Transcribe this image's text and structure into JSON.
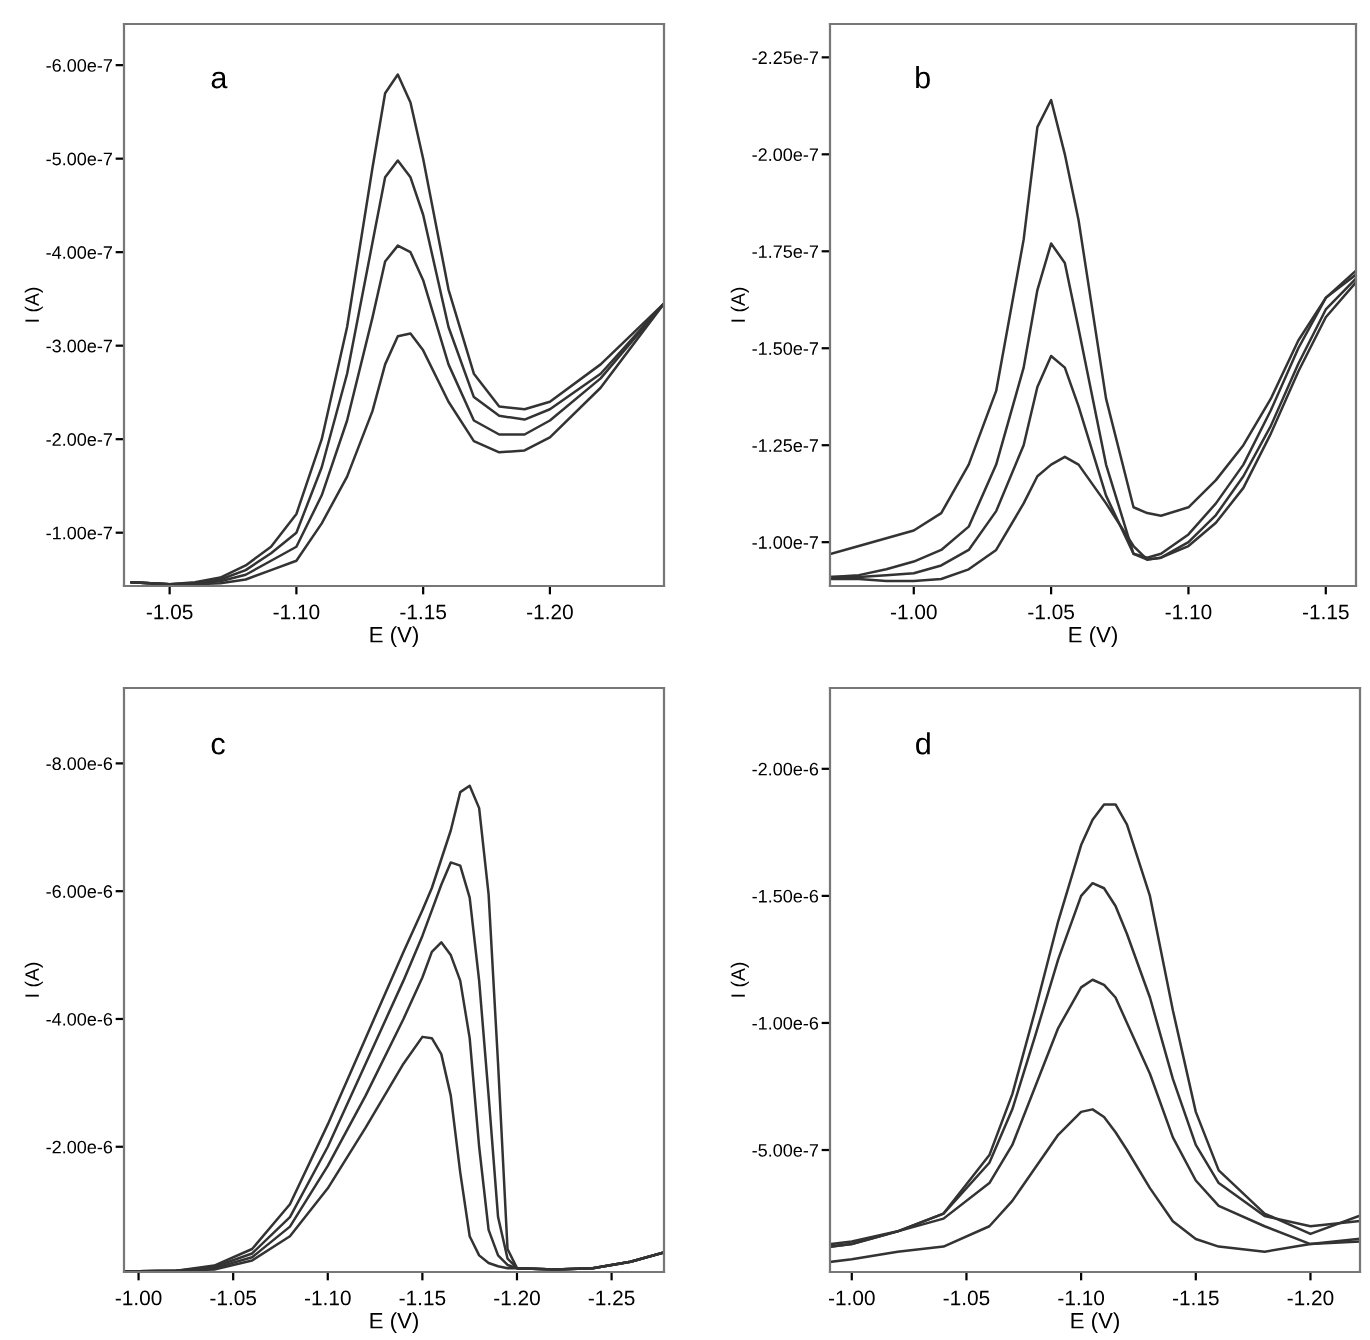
{
  "chart_data": [
    {
      "type": "line",
      "annotations": [
        "a"
      ],
      "xlabel": "E (V)",
      "ylabel": "I (A)",
      "x": [
        -1.035,
        -1.05,
        -1.06,
        -1.07,
        -1.08,
        -1.09,
        -1.1,
        -1.11,
        -1.12,
        -1.13,
        -1.135,
        -1.14,
        -1.145,
        -1.15,
        -1.16,
        -1.17,
        -1.18,
        -1.19,
        -1.2,
        -1.22,
        -1.245
      ],
      "series": [
        {
          "color": "#333333",
          "values": [
            -4.7e-08,
            -4.5e-08,
            -4.7e-08,
            -5.2e-08,
            -6.5e-08,
            -8.5e-08,
            -1.2e-07,
            -2e-07,
            -3.2e-07,
            -4.9e-07,
            -5.7e-07,
            -5.9e-07,
            -5.6e-07,
            -5e-07,
            -3.6e-07,
            -2.7e-07,
            -2.35e-07,
            -2.32e-07,
            -2.4e-07,
            -2.8e-07,
            -3.45e-07
          ]
        },
        {
          "color": "#333333",
          "values": [
            -4.7e-08,
            -4.5e-08,
            -4.6e-08,
            -5e-08,
            -6e-08,
            -7.8e-08,
            -1e-07,
            -1.7e-07,
            -2.7e-07,
            -4.1e-07,
            -4.8e-07,
            -4.98e-07,
            -4.8e-07,
            -4.4e-07,
            -3.2e-07,
            -2.45e-07,
            -2.25e-07,
            -2.21e-07,
            -2.32e-07,
            -2.7e-07,
            -3.45e-07
          ]
        },
        {
          "color": "#333333",
          "values": [
            -4.7e-08,
            -4.5e-08,
            -4.6e-08,
            -4.8e-08,
            -5.5e-08,
            -7e-08,
            -8.5e-08,
            -1.4e-07,
            -2.2e-07,
            -3.3e-07,
            -3.9e-07,
            -4.07e-07,
            -4e-07,
            -3.7e-07,
            -2.8e-07,
            -2.2e-07,
            -2.05e-07,
            -2.05e-07,
            -2.2e-07,
            -2.65e-07,
            -3.45e-07
          ]
        },
        {
          "color": "#333333",
          "values": [
            -4.7e-08,
            -4.5e-08,
            -4.5e-08,
            -4.6e-08,
            -5e-08,
            -6e-08,
            -7e-08,
            -1.1e-07,
            -1.6e-07,
            -2.3e-07,
            -2.8e-07,
            -3.1e-07,
            -3.13e-07,
            -2.95e-07,
            -2.4e-07,
            -1.98e-07,
            -1.86e-07,
            -1.88e-07,
            -2.02e-07,
            -2.55e-07,
            -3.45e-07
          ]
        }
      ],
      "xlim": [
        -1.032,
        -1.245
      ],
      "ylim": [
        -4.3e-08,
        -6.44e-07
      ],
      "xticks": [
        {
          "value": -1.05,
          "label": "-1.05"
        },
        {
          "value": -1.1,
          "label": "-1.10"
        },
        {
          "value": -1.15,
          "label": "-1.15"
        },
        {
          "value": -1.2,
          "label": "-1.20"
        }
      ],
      "yticks": [
        {
          "value": -1e-07,
          "label": "-1.00e-7"
        },
        {
          "value": -2e-07,
          "label": "-2.00e-7"
        },
        {
          "value": -3e-07,
          "label": "-3.00e-7"
        },
        {
          "value": -4e-07,
          "label": "-4.00e-7"
        },
        {
          "value": -5e-07,
          "label": "-5.00e-7"
        },
        {
          "value": -6e-07,
          "label": "-6.00e-7"
        }
      ],
      "grid": false,
      "legend": false
    },
    {
      "type": "line",
      "annotations": [
        "b"
      ],
      "xlabel": "E (V)",
      "ylabel": "I (A)",
      "x": [
        -0.97,
        -0.98,
        -0.99,
        -1.0,
        -1.01,
        -1.02,
        -1.03,
        -1.04,
        -1.045,
        -1.05,
        -1.055,
        -1.06,
        -1.07,
        -1.08,
        -1.085,
        -1.09,
        -1.1,
        -1.11,
        -1.12,
        -1.13,
        -1.14,
        -1.15,
        -1.161
      ],
      "series": [
        {
          "color": "#333333",
          "values": [
            -9.7e-08,
            -9.9e-08,
            -1.01e-07,
            -1.03e-07,
            -1.075e-07,
            -1.2e-07,
            -1.39e-07,
            -1.78e-07,
            -2.07e-07,
            -2.14e-07,
            -2e-07,
            -1.83e-07,
            -1.37e-07,
            -1.09e-07,
            -1.075e-07,
            -1.068e-07,
            -1.09e-07,
            -1.16e-07,
            -1.25e-07,
            -1.37e-07,
            -1.52e-07,
            -1.63e-07,
            -1.7e-07
          ]
        },
        {
          "color": "#333333",
          "values": [
            -9.1e-08,
            -9.15e-08,
            -9.3e-08,
            -9.5e-08,
            -9.8e-08,
            -1.04e-07,
            -1.2e-07,
            -1.45e-07,
            -1.65e-07,
            -1.77e-07,
            -1.72e-07,
            -1.55e-07,
            -1.2e-07,
            -9.7e-08,
            -9.6e-08,
            -9.7e-08,
            -1.02e-07,
            -1.1e-07,
            -1.2e-07,
            -1.34e-07,
            -1.5e-07,
            -1.63e-07,
            -1.69e-07
          ]
        },
        {
          "color": "#333333",
          "values": [
            -9.1e-08,
            -9.1e-08,
            -9.15e-08,
            -9.2e-08,
            -9.4e-08,
            -9.8e-08,
            -1.08e-07,
            -1.25e-07,
            -1.4e-07,
            -1.48e-07,
            -1.45e-07,
            -1.35e-07,
            -1.12e-07,
            -9.7e-08,
            -9.55e-08,
            -9.6e-08,
            -1e-07,
            -1.07e-07,
            -1.17e-07,
            -1.3e-07,
            -1.46e-07,
            -1.6e-07,
            -1.68e-07
          ]
        },
        {
          "color": "#333333",
          "values": [
            -9.05e-08,
            -9.05e-08,
            -9e-08,
            -9e-08,
            -9.05e-08,
            -9.3e-08,
            -9.8e-08,
            -1.1e-07,
            -1.17e-07,
            -1.2e-07,
            -1.22e-07,
            -1.2e-07,
            -1.1e-07,
            -9.9e-08,
            -9.55e-08,
            -9.6e-08,
            -9.9e-08,
            -1.05e-07,
            -1.14e-07,
            -1.28e-07,
            -1.44e-07,
            -1.58e-07,
            -1.67e-07
          ]
        }
      ],
      "xlim": [
        -0.9695,
        -1.161
      ],
      "ylim": [
        -8.87e-08,
        -2.336e-07
      ],
      "xticks": [
        {
          "value": -1.0,
          "label": "-1.00"
        },
        {
          "value": -1.05,
          "label": "-1.05"
        },
        {
          "value": -1.1,
          "label": "-1.10"
        },
        {
          "value": -1.15,
          "label": "-1.15"
        }
      ],
      "yticks": [
        {
          "value": -1e-07,
          "label": "-1.00e-7"
        },
        {
          "value": -1.25e-07,
          "label": "-1.25e-7"
        },
        {
          "value": -1.5e-07,
          "label": "-1.50e-7"
        },
        {
          "value": -1.75e-07,
          "label": "-1.75e-7"
        },
        {
          "value": -2e-07,
          "label": "-2.00e-7"
        },
        {
          "value": -2.25e-07,
          "label": "-2.25e-7"
        }
      ],
      "grid": false,
      "legend": false
    },
    {
      "type": "line",
      "annotations": [
        "c"
      ],
      "xlabel": "E (V)",
      "ylabel": "I (A)",
      "x": [
        -0.993,
        -1.0,
        -1.02,
        -1.04,
        -1.06,
        -1.08,
        -1.1,
        -1.12,
        -1.14,
        -1.15,
        -1.155,
        -1.16,
        -1.165,
        -1.17,
        -1.175,
        -1.18,
        -1.185,
        -1.19,
        -1.195,
        -1.2,
        -1.22,
        -1.24,
        -1.26,
        -1.277
      ],
      "series": [
        {
          "color": "#333333",
          "values": [
            -5e-08,
            -5e-08,
            -6e-08,
            -1.4e-07,
            -4e-07,
            -1.1e-06,
            -2.35e-06,
            -3.7e-06,
            -5.05e-06,
            -5.7e-06,
            -6.05e-06,
            -6.5e-06,
            -6.95e-06,
            -7.55e-06,
            -7.65e-06,
            -7.3e-06,
            -5.95e-06,
            -3.3e-06,
            -4e-07,
            -1e-07,
            -8e-08,
            -1e-07,
            -2e-07,
            -3.4e-07
          ]
        },
        {
          "color": "#333333",
          "values": [
            -5e-08,
            -5e-08,
            -6e-08,
            -1.2e-07,
            -3.3e-07,
            -9e-07,
            -2e-06,
            -3.3e-06,
            -4.6e-06,
            -5.3e-06,
            -5.7e-06,
            -6.1e-06,
            -6.45e-06,
            -6.4e-06,
            -5.9e-06,
            -4.6e-06,
            -2.8e-06,
            -9e-07,
            -2.5e-07,
            -1e-07,
            -8e-08,
            -1e-07,
            -2e-07,
            -3.4e-07
          ]
        },
        {
          "color": "#333333",
          "values": [
            -5e-08,
            -5e-08,
            -6e-08,
            -1e-07,
            -2.7e-07,
            -7.5e-07,
            -1.7e-06,
            -2.8e-06,
            -4e-06,
            -4.65e-06,
            -5.05e-06,
            -5.2e-06,
            -5e-06,
            -4.6e-06,
            -3.7e-06,
            -2e-06,
            -7e-07,
            -3e-07,
            -1.5e-07,
            -1e-07,
            -8e-08,
            -1e-07,
            -2e-07,
            -3.4e-07
          ]
        },
        {
          "color": "#333333",
          "values": [
            -5e-08,
            -5e-08,
            -6e-08,
            -8e-08,
            -2.2e-07,
            -6e-07,
            -1.35e-06,
            -2.3e-06,
            -3.3e-06,
            -3.72e-06,
            -3.7e-06,
            -3.45e-06,
            -2.8e-06,
            -1.6e-06,
            -6e-07,
            -3e-07,
            -1.8e-07,
            -1.3e-07,
            -1e-07,
            -1e-07,
            -8e-08,
            -1e-07,
            -2e-07,
            -3.4e-07
          ]
        }
      ],
      "xlim": [
        -0.9923,
        -1.2777
      ],
      "ylim": [
        -4e-08,
        -9.18e-06
      ],
      "xticks": [
        {
          "value": -1.0,
          "label": "-1.00"
        },
        {
          "value": -1.05,
          "label": "-1.05"
        },
        {
          "value": -1.1,
          "label": "-1.10"
        },
        {
          "value": -1.15,
          "label": "-1.15"
        },
        {
          "value": -1.2,
          "label": "-1.20"
        },
        {
          "value": -1.25,
          "label": "-1.25"
        }
      ],
      "yticks": [
        {
          "value": -2e-06,
          "label": "-2.00e-6"
        },
        {
          "value": -4e-06,
          "label": "-4.00e-6"
        },
        {
          "value": -6e-06,
          "label": "-6.00e-6"
        },
        {
          "value": -8e-06,
          "label": "-8.00e-6"
        }
      ],
      "grid": false,
      "legend": false
    },
    {
      "type": "line",
      "annotations": [
        "d"
      ],
      "xlabel": "E (V)",
      "ylabel": "I (A)",
      "x": [
        -0.991,
        -1.0,
        -1.02,
        -1.04,
        -1.06,
        -1.07,
        -1.08,
        -1.09,
        -1.1,
        -1.105,
        -1.11,
        -1.115,
        -1.12,
        -1.13,
        -1.14,
        -1.15,
        -1.16,
        -1.18,
        -1.2,
        -1.221
      ],
      "series": [
        {
          "color": "#333333",
          "values": [
            -1.2e-07,
            -1.3e-07,
            -1.8e-07,
            -2.5e-07,
            -4.8e-07,
            -7.2e-07,
            -1.05e-06,
            -1.4e-06,
            -1.7e-06,
            -1.8e-06,
            -1.86e-06,
            -1.86e-06,
            -1.78e-06,
            -1.5e-06,
            -1.05e-06,
            -6.5e-07,
            -4.2e-07,
            -2.5e-07,
            -1.7e-07,
            -2.4e-07
          ]
        },
        {
          "color": "#333333",
          "values": [
            -1.2e-07,
            -1.3e-07,
            -1.8e-07,
            -2.5e-07,
            -4.5e-07,
            -6.6e-07,
            -9.5e-07,
            -1.25e-06,
            -1.5e-06,
            -1.55e-06,
            -1.53e-06,
            -1.46e-06,
            -1.35e-06,
            -1.1e-06,
            -7.8e-07,
            -5.2e-07,
            -3.7e-07,
            -2.4e-07,
            -2e-07,
            -2.2e-07
          ]
        },
        {
          "color": "#333333",
          "values": [
            -1.3e-07,
            -1.4e-07,
            -1.8e-07,
            -2.3e-07,
            -3.7e-07,
            -5.2e-07,
            -7.5e-07,
            -9.8e-07,
            -1.14e-06,
            -1.17e-06,
            -1.15e-06,
            -1.1e-06,
            -1e-06,
            -8e-07,
            -5.5e-07,
            -3.8e-07,
            -2.8e-07,
            -2e-07,
            -1.3e-07,
            -1.5e-07
          ]
        },
        {
          "color": "#333333",
          "values": [
            -6e-08,
            -7e-08,
            -1e-07,
            -1.2e-07,
            -2e-07,
            -3e-07,
            -4.3e-07,
            -5.6e-07,
            -6.5e-07,
            -6.6e-07,
            -6.3e-07,
            -5.7e-07,
            -5e-07,
            -3.5e-07,
            -2.2e-07,
            -1.5e-07,
            -1.2e-07,
            -1e-07,
            -1.3e-07,
            -1.4e-07
          ]
        }
      ],
      "xlim": [
        -0.9905,
        -1.2216
      ],
      "ylim": [
        -2e-08,
        -2.318e-06
      ],
      "xticks": [
        {
          "value": -1.0,
          "label": "-1.00"
        },
        {
          "value": -1.05,
          "label": "-1.05"
        },
        {
          "value": -1.1,
          "label": "-1.10"
        },
        {
          "value": -1.15,
          "label": "-1.15"
        },
        {
          "value": -1.2,
          "label": "-1.20"
        }
      ],
      "yticks": [
        {
          "value": -5e-07,
          "label": "-5.00e-7"
        },
        {
          "value": -1e-06,
          "label": "-1.00e-6"
        },
        {
          "value": -1.5e-06,
          "label": "-1.50e-6"
        },
        {
          "value": -2e-06,
          "label": "-2.00e-6"
        }
      ],
      "grid": false,
      "legend": false
    }
  ]
}
